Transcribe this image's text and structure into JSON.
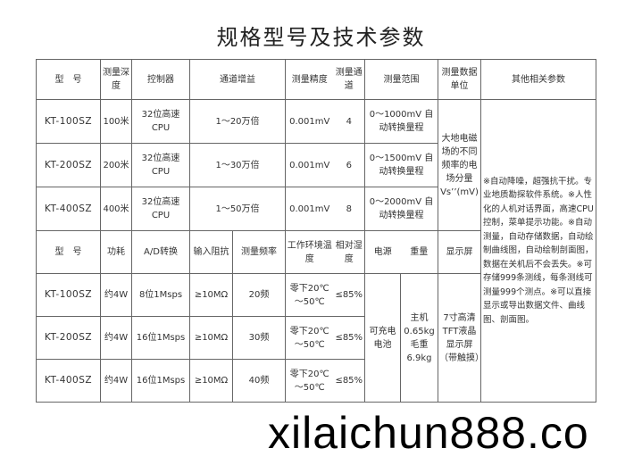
{
  "title": "规格型号及技术参数",
  "top_header": [
    "型　号",
    "测量深度",
    "控制器",
    "通道增益",
    "测量精度",
    "测量通道",
    "测量范围",
    "测量数据单位",
    "其他相关参数"
  ],
  "top_rows": [
    {
      "model": "KT-100SZ",
      "depth": "100米",
      "controller": "32位高速CPU",
      "gain": "1～20万倍",
      "precision": "0.001mV",
      "channels": "4",
      "range": "0～1000mV 自动转换量程"
    },
    {
      "model": "KT-200SZ",
      "depth": "200米",
      "controller": "32位高速CPU",
      "gain": "1～30万倍",
      "precision": "0.001mV",
      "channels": "6",
      "range": "0～1500mV 自动转换量程"
    },
    {
      "model": "KT-400SZ",
      "depth": "400米",
      "controller": "32位高速CPU",
      "gain": "1～50万倍",
      "precision": "0.001mV",
      "channels": "8",
      "range": "0～2000mV 自动转换量程"
    }
  ],
  "unit_text": "大地电磁场的不同频率的电场分量Vs’’(mV)",
  "other_params": "※自动降噪，超强抗干扰。专业地质勘探软件系统。※人性化的人机对话界面，高速CPU控制，菜单提示功能。※自动测量，自动存储数据，自动绘制曲线图，自动绘制剖面图，数据在关机后不会丢失。※可存储999条测线，每条测线可测量999个测点。※可以直接显示或导出数据文件、曲线图、剖面图。",
  "bottom_header": [
    "型　号",
    "功耗",
    "A/D转换",
    "输入阻抗",
    "测量频率",
    "工作环境温度",
    "相对湿度",
    "电源",
    "重量",
    "显示屏"
  ],
  "bottom_rows": [
    {
      "model": "KT-100SZ",
      "power": "约4W",
      "ad": "8位1Msps",
      "impedance": "≥10MΩ",
      "freq": "20频",
      "temp": "零下20℃～50℃",
      "humidity": "≤85%"
    },
    {
      "model": "KT-200SZ",
      "power": "约4W",
      "ad": "16位1Msps",
      "impedance": "≥10MΩ",
      "freq": "30频",
      "temp": "零下20℃～50℃",
      "humidity": "≤85%"
    },
    {
      "model": "KT-400SZ",
      "power": "约4W",
      "ad": "16位1Msps",
      "impedance": "≥10MΩ",
      "freq": "40频",
      "temp": "零下20℃～50℃",
      "humidity": "≤85%"
    }
  ],
  "battery": "可充电电池",
  "weight": "主机0.65kg 毛重6.9kg",
  "display": "7寸高清TFT液晶显示屏（带触摸）",
  "watermark": "xilaichun888.co"
}
